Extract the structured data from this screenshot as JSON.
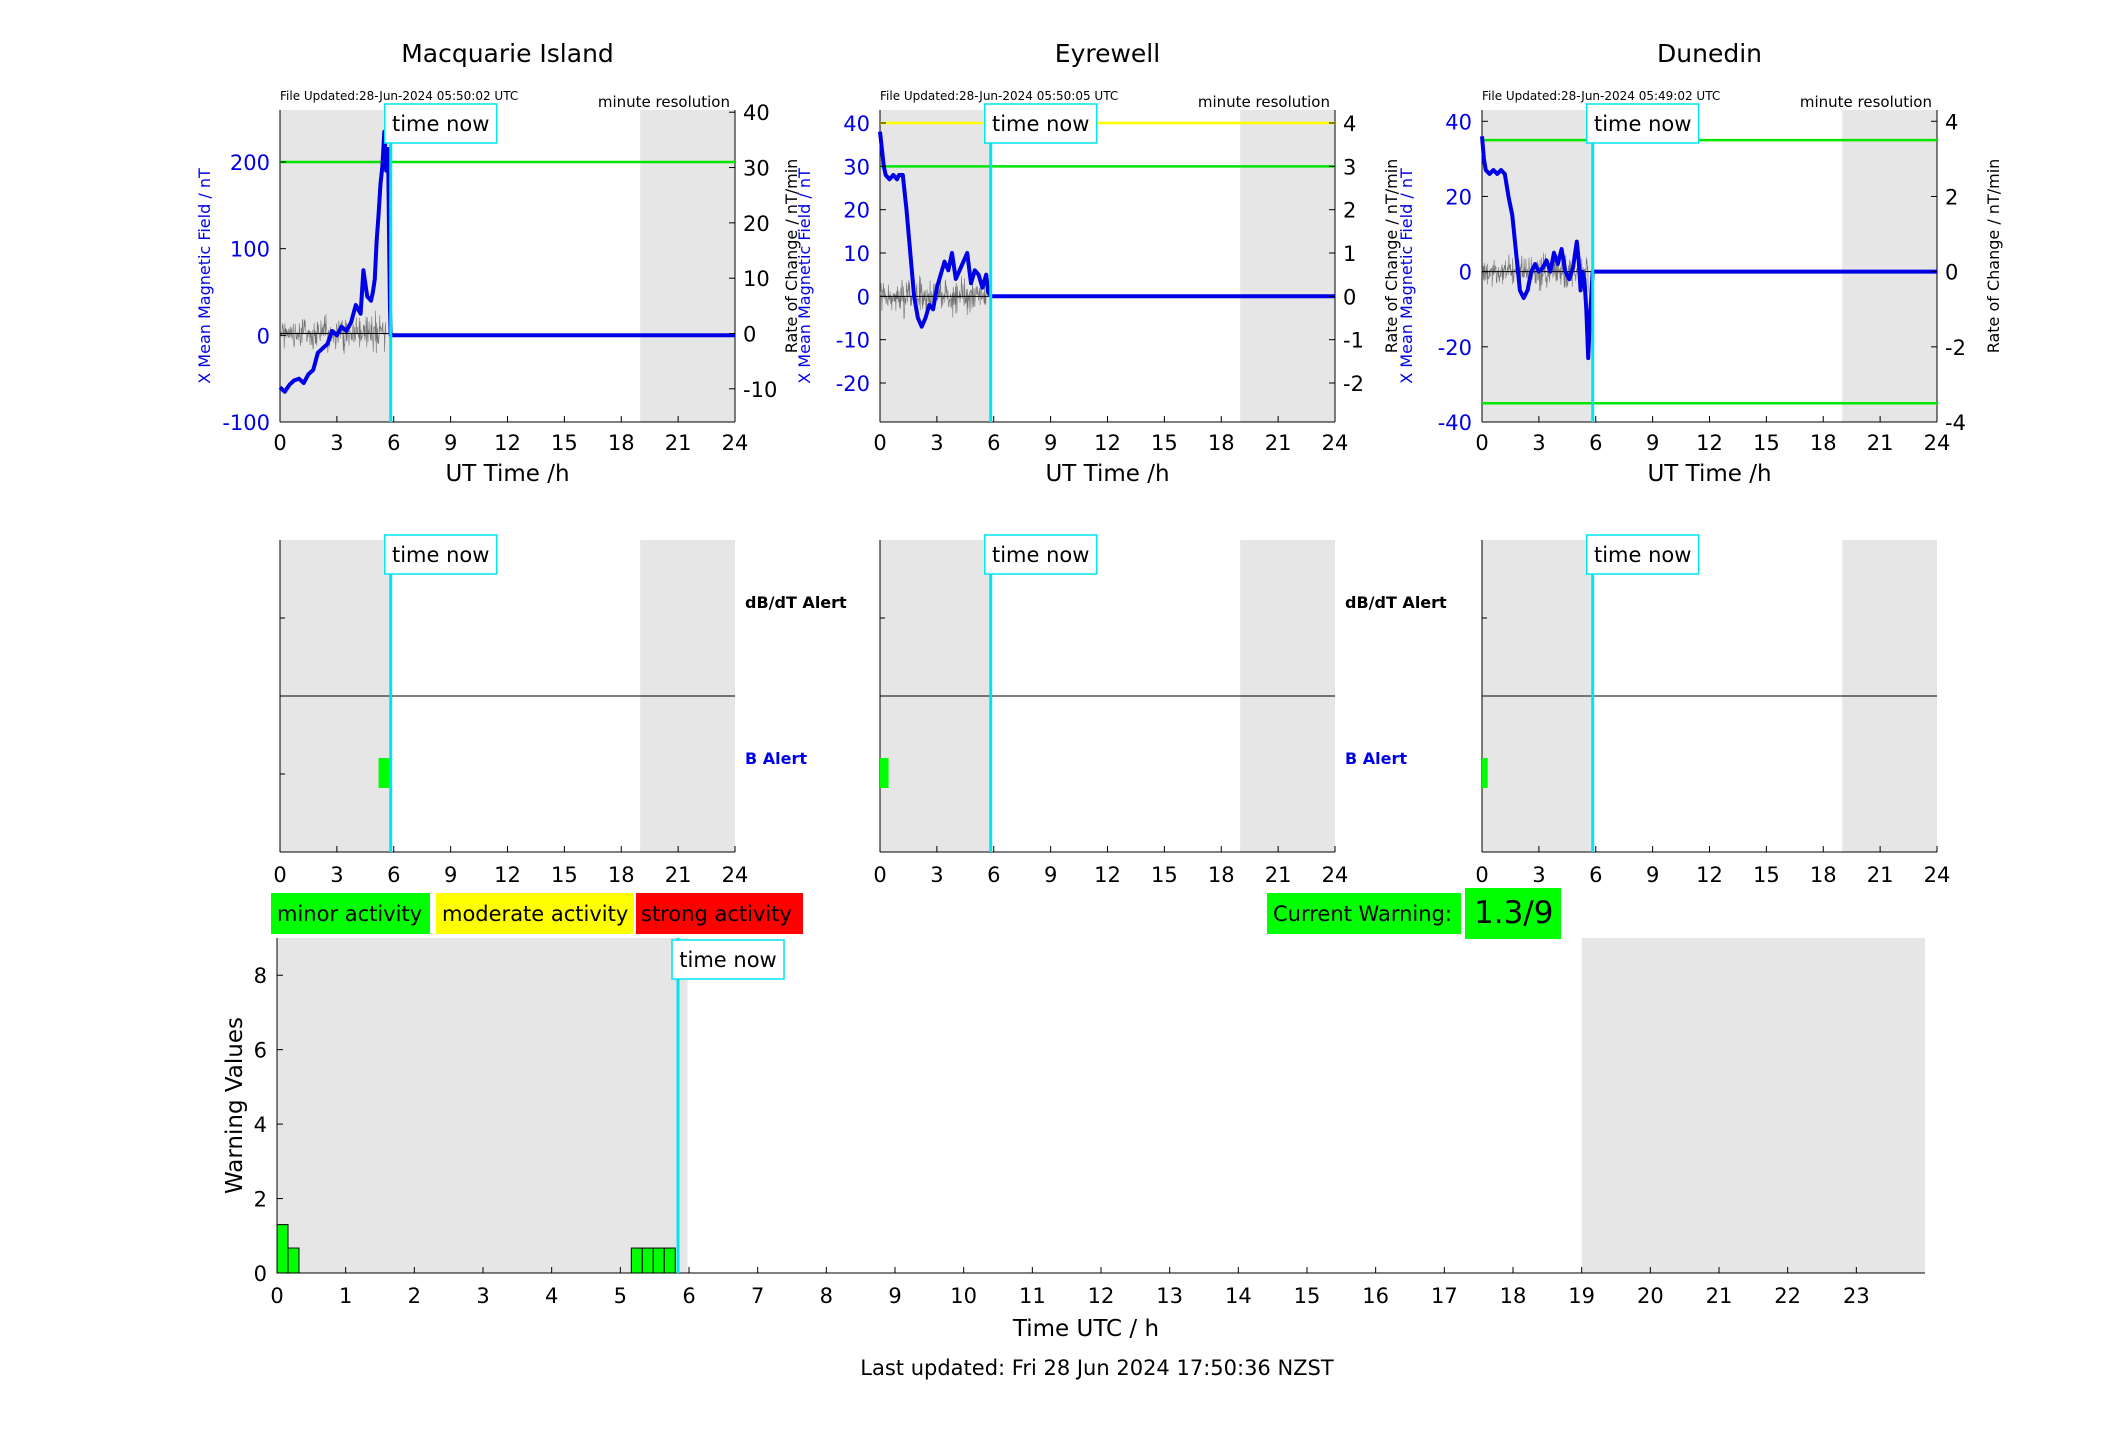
{
  "panels": [
    {
      "title": "Macquarie Island",
      "file_updated": "File Updated:28-Jun-2024 05:50:02 UTC",
      "resolution": "minute resolution",
      "ylabel_left": "X Mean Magnetic Field / nT",
      "ylabel_right": "Rate of Change / nT/min",
      "xlabel": "UT Time /h",
      "time_now_label": "time now",
      "time_now_hour": 5.84
    },
    {
      "title": "Eyrewell",
      "file_updated": "File Updated:28-Jun-2024 05:50:05 UTC",
      "resolution": "minute resolution",
      "ylabel_left": "X Mean Magnetic Field / nT",
      "ylabel_right": "Rate of Change / nT/min",
      "xlabel": "UT Time /h",
      "time_now_label": "time now",
      "time_now_hour": 5.84
    },
    {
      "title": "Dunedin",
      "file_updated": "File Updated:28-Jun-2024 05:49:02 UTC",
      "resolution": "minute resolution",
      "ylabel_left": "X Mean Magnetic Field / nT",
      "ylabel_right": "Rate of Change / nT/min",
      "xlabel": "UT Time /h",
      "time_now_label": "time now",
      "time_now_hour": 5.84
    }
  ],
  "alert_labels": {
    "dbdt": "dB/dT Alert",
    "b": "B Alert"
  },
  "legend": {
    "minor": "minor activity",
    "moderate": "moderate activity",
    "strong": "strong activity",
    "current_warning_label": "Current Warning:",
    "current_warning_value": "1.3/9"
  },
  "footer": {
    "last_updated": "Last updated: Fri 28 Jun 2024 17:50:36 NZST"
  },
  "colors": {
    "field": "#0000e6",
    "threshold": "#00e600",
    "threshold_high": "#ffff00",
    "time_now": "#00e5ee",
    "night_shade": "#e6e6e6",
    "minor": "#00ff00",
    "moderate": "#ffff00",
    "strong": "#ff0000"
  },
  "chart_data": [
    {
      "type": "line",
      "title": "Macquarie Island",
      "xlabel": "UT Time /h",
      "ylabel": "X Mean Magnetic Field / nT",
      "ylabel_right": "Rate of Change / nT/min",
      "xlim": [
        0,
        24
      ],
      "xticks": [
        0,
        3,
        6,
        9,
        12,
        15,
        18,
        21,
        24
      ],
      "ylim": [
        -100,
        260
      ],
      "yticks": [
        -100,
        0,
        100,
        200
      ],
      "ylim_right": [
        -16.0,
        40.4
      ],
      "yticks_right": [
        -10,
        0,
        10,
        20,
        30,
        40
      ],
      "shaded_hours": [
        [
          0,
          5.84
        ],
        [
          19,
          24
        ]
      ],
      "thresholds": [
        {
          "value": 200,
          "color": "#00e600"
        }
      ],
      "series": [
        {
          "x": [
            0,
            0.25,
            0.5,
            0.75,
            1.0,
            1.25,
            1.5,
            1.75,
            2.0,
            2.25,
            2.5,
            2.75,
            3.0,
            3.25,
            3.5,
            3.75,
            4.0,
            4.25,
            4.4,
            4.6,
            4.8,
            4.9,
            5.0,
            5.1,
            5.2,
            5.3,
            5.4,
            5.5,
            5.6,
            5.7,
            5.75,
            5.8,
            5.84,
            6.0,
            24
          ],
          "y": [
            -60,
            -65,
            -57,
            -52,
            -50,
            -55,
            -45,
            -40,
            -20,
            -15,
            -10,
            5,
            0,
            10,
            5,
            15,
            35,
            25,
            75,
            45,
            40,
            50,
            65,
            110,
            140,
            175,
            195,
            235,
            190,
            215,
            120,
            30,
            0,
            0,
            0
          ]
        }
      ]
    },
    {
      "type": "line",
      "title": "Eyrewell",
      "xlabel": "UT Time /h",
      "ylabel": "X Mean Magnetic Field / nT",
      "ylabel_right": "Rate of Change / nT/min",
      "xlim": [
        0,
        24
      ],
      "xticks": [
        0,
        3,
        6,
        9,
        12,
        15,
        18,
        21,
        24
      ],
      "ylim": [
        -29,
        43
      ],
      "yticks": [
        -20,
        -10,
        0,
        10,
        20,
        30,
        40
      ],
      "ylim_right": [
        -2.9,
        4.3
      ],
      "yticks_right": [
        -2,
        -1,
        0,
        1,
        2,
        3,
        4
      ],
      "shaded_hours": [
        [
          0,
          5.84
        ],
        [
          19,
          24
        ]
      ],
      "thresholds": [
        {
          "value": 30,
          "color": "#00e600"
        },
        {
          "value": 40,
          "color": "#ffff00"
        }
      ],
      "series": [
        {
          "x": [
            0,
            0.1,
            0.2,
            0.3,
            0.5,
            0.7,
            0.9,
            1.0,
            1.2,
            1.4,
            1.6,
            1.8,
            2.0,
            2.2,
            2.4,
            2.6,
            2.8,
            3.0,
            3.2,
            3.4,
            3.6,
            3.8,
            4.0,
            4.2,
            4.4,
            4.6,
            4.8,
            5.0,
            5.2,
            5.4,
            5.6,
            5.7,
            5.84,
            6.0,
            24
          ],
          "y": [
            38,
            34,
            30,
            28,
            27,
            28,
            27,
            28,
            28,
            20,
            10,
            0,
            -5,
            -7,
            -5,
            -2,
            -3,
            2,
            5,
            8,
            6,
            10,
            4,
            6,
            8,
            10,
            3,
            6,
            5,
            2,
            5,
            1,
            0,
            0,
            0
          ]
        }
      ]
    },
    {
      "type": "line",
      "title": "Dunedin",
      "xlabel": "UT Time /h",
      "ylabel": "X Mean Magnetic Field / nT",
      "ylabel_right": "Rate of Change / nT/min",
      "xlim": [
        0,
        24
      ],
      "xticks": [
        0,
        3,
        6,
        9,
        12,
        15,
        18,
        21,
        24
      ],
      "ylim": [
        -40,
        43
      ],
      "yticks": [
        -40,
        -20,
        0,
        20,
        40
      ],
      "ylim_right": [
        -4.0,
        4.3
      ],
      "yticks_right": [
        -4,
        -2,
        0,
        2,
        4
      ],
      "shaded_hours": [
        [
          0,
          5.84
        ],
        [
          19,
          24
        ]
      ],
      "thresholds": [
        {
          "value": 35,
          "color": "#00e600"
        },
        {
          "value": -35,
          "color": "#00e600"
        }
      ],
      "series": [
        {
          "x": [
            0,
            0.1,
            0.2,
            0.4,
            0.6,
            0.8,
            1.0,
            1.2,
            1.4,
            1.6,
            1.8,
            2.0,
            2.2,
            2.4,
            2.6,
            2.8,
            3.0,
            3.2,
            3.4,
            3.6,
            3.8,
            4.0,
            4.2,
            4.4,
            4.6,
            4.8,
            5.0,
            5.1,
            5.2,
            5.3,
            5.4,
            5.5,
            5.6,
            5.7,
            5.84,
            6.0,
            24
          ],
          "y": [
            36,
            30,
            27,
            26,
            27,
            26,
            27,
            26,
            20,
            15,
            5,
            -5,
            -7,
            -5,
            0,
            2,
            0,
            1,
            3,
            0,
            5,
            2,
            6,
            0,
            -2,
            1,
            8,
            3,
            -5,
            0,
            -2,
            -10,
            -23,
            -12,
            0,
            0,
            0
          ]
        }
      ]
    },
    {
      "type": "bar",
      "title": "Warning Values",
      "xlabel": "Time UTC / h",
      "ylabel": "Warning Values",
      "xlim": [
        0,
        24
      ],
      "xticks": [
        0,
        1,
        2,
        3,
        4,
        5,
        6,
        7,
        8,
        9,
        10,
        11,
        12,
        13,
        14,
        15,
        16,
        17,
        18,
        19,
        20,
        21,
        22,
        23
      ],
      "ylim": [
        0,
        9
      ],
      "yticks": [
        0,
        2,
        4,
        6,
        8
      ],
      "shaded_hours": [
        [
          0,
          5.98
        ],
        [
          19,
          24
        ]
      ],
      "time_now_hour": 5.84,
      "time_now_label": "time now",
      "bars": [
        {
          "x": 0.0,
          "width": 0.16,
          "value": 1.3
        },
        {
          "x": 0.16,
          "width": 0.16,
          "value": 0.67
        },
        {
          "x": 5.16,
          "width": 0.16,
          "value": 0.67
        },
        {
          "x": 5.32,
          "width": 0.16,
          "value": 0.67
        },
        {
          "x": 5.48,
          "width": 0.16,
          "value": 0.67
        },
        {
          "x": 5.64,
          "width": 0.16,
          "value": 0.67
        }
      ]
    }
  ],
  "alert_data": [
    {
      "xlim": [
        0,
        24
      ],
      "xticks": [
        0,
        3,
        6,
        9,
        12,
        15,
        18,
        21,
        24
      ],
      "shaded_hours": [
        [
          0,
          5.84
        ],
        [
          19,
          24
        ]
      ],
      "time_now_hour": 5.84,
      "b_alert_bars": [
        {
          "x": 5.2,
          "width": 0.6
        }
      ]
    },
    {
      "xlim": [
        0,
        24
      ],
      "xticks": [
        0,
        3,
        6,
        9,
        12,
        15,
        18,
        21,
        24
      ],
      "shaded_hours": [
        [
          0,
          5.84
        ],
        [
          19,
          24
        ]
      ],
      "time_now_hour": 5.84,
      "b_alert_bars": [
        {
          "x": 0.0,
          "width": 0.45
        }
      ]
    },
    {
      "xlim": [
        0,
        24
      ],
      "xticks": [
        0,
        3,
        6,
        9,
        12,
        15,
        18,
        21,
        24
      ],
      "shaded_hours": [
        [
          0,
          5.84
        ],
        [
          19,
          24
        ]
      ],
      "time_now_hour": 5.84,
      "b_alert_bars": [
        {
          "x": 0.0,
          "width": 0.3
        }
      ]
    }
  ]
}
